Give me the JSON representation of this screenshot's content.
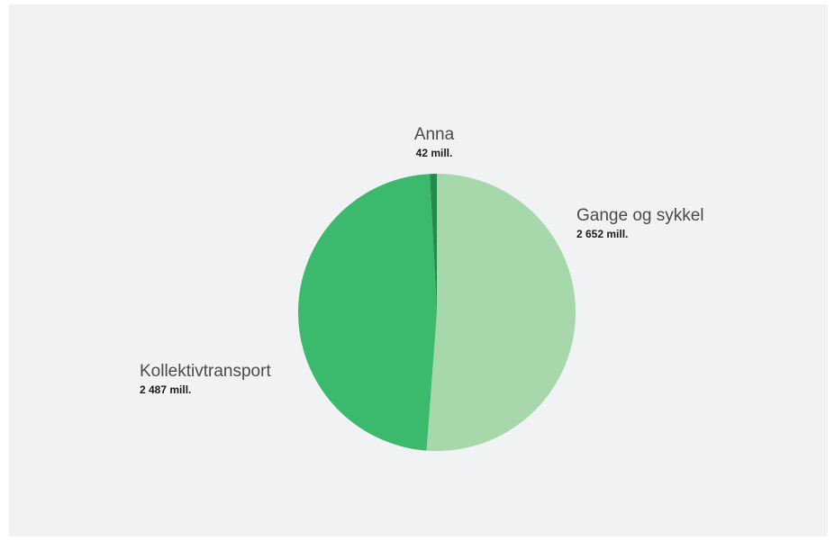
{
  "chart_data": {
    "type": "pie",
    "slices": [
      {
        "label": "Gange og sykkel",
        "value_label": "2 652  mill.",
        "value": 2652,
        "color": "#a6d8ab"
      },
      {
        "label": "Kollektivtransport",
        "value_label": "2 487 mill.",
        "value": 2487,
        "color": "#3bb96c"
      },
      {
        "label": "Anna",
        "value_label": "42 mill.",
        "value": 42,
        "color": "#248a4d"
      }
    ],
    "start": "12 o'clock",
    "direction": "clockwise",
    "unit": "mill."
  }
}
